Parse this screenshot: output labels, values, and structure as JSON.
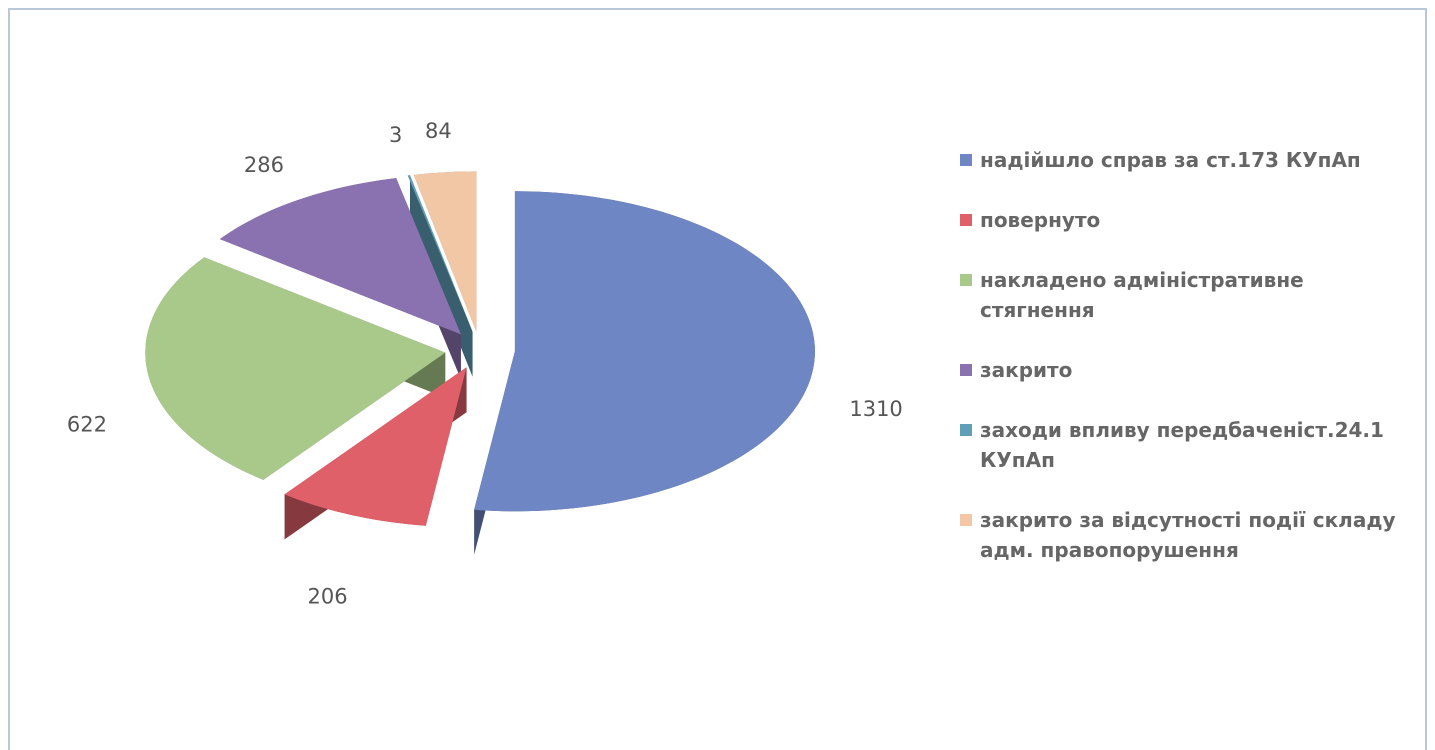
{
  "chart_data": {
    "type": "pie",
    "categories": [
      "надійшло справ за ст.173 КУпАп",
      "повернуто",
      "накладено адміністративне стягнення",
      "закрито",
      "заходи впливу передбаченіст.24.1 КУпАп",
      "закрито за відсутності події складу адм. правопорушення"
    ],
    "values": [
      1310,
      206,
      622,
      286,
      3,
      84
    ],
    "colors": [
      "#6f86c4",
      "#e0606a",
      "#a9c98a",
      "#8a72b0",
      "#5f9fb8",
      "#f2c7a6"
    ],
    "legend": "right"
  }
}
